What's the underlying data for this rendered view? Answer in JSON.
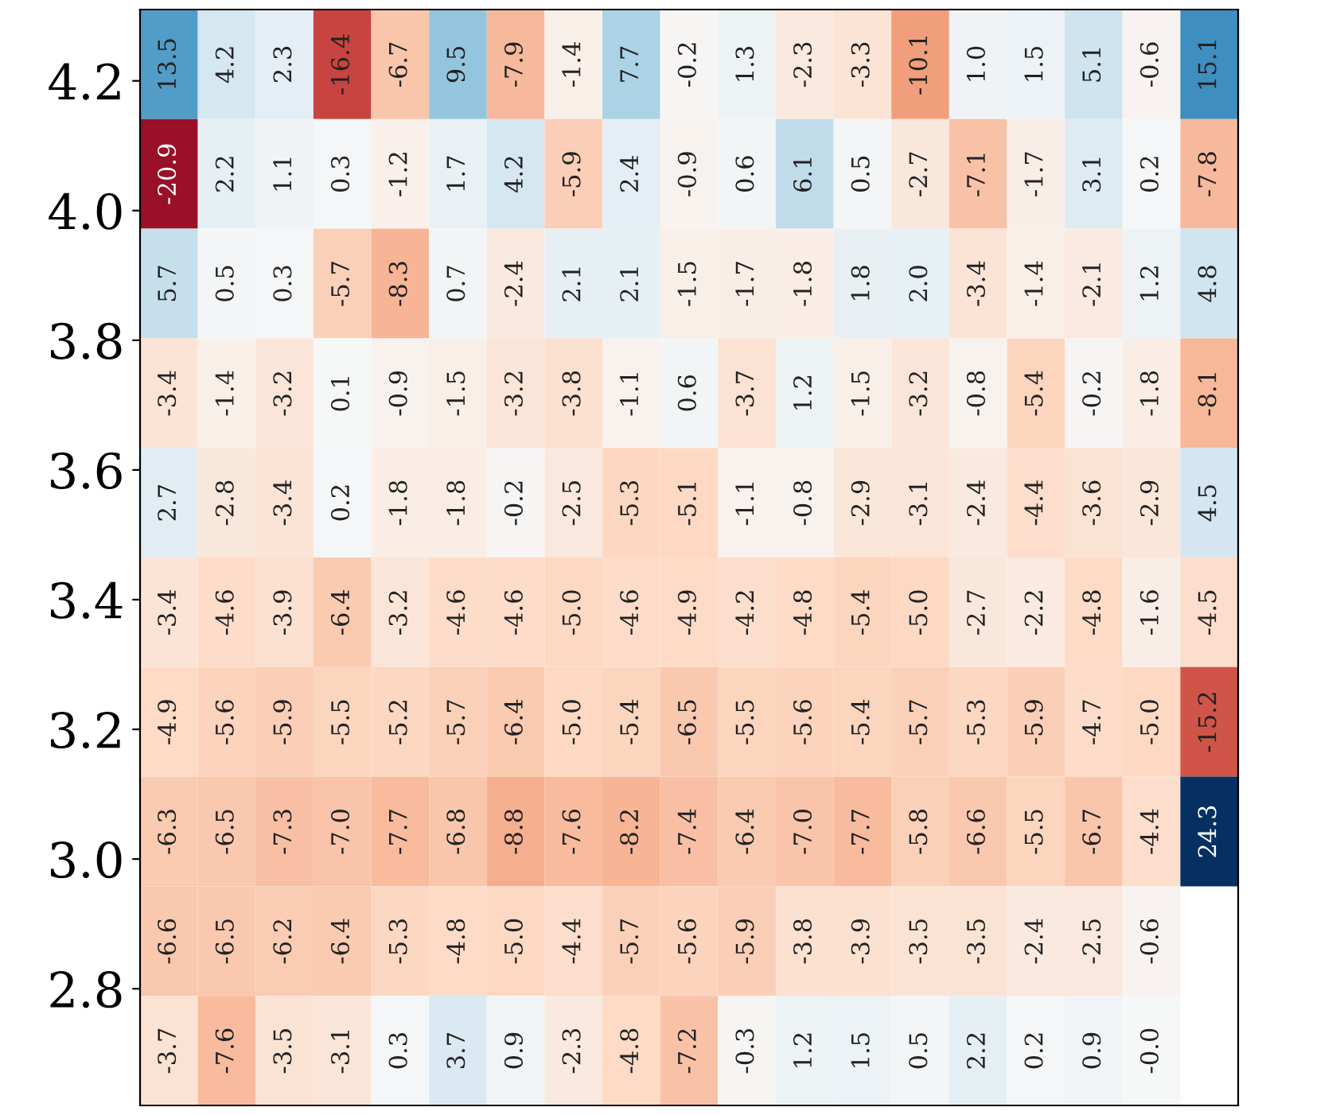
{
  "chart_data": {
    "type": "heatmap",
    "categories": [
      null,
      null,
      null,
      null,
      null,
      null,
      null,
      null,
      null,
      null,
      null,
      null,
      null,
      null,
      null,
      null,
      null,
      null,
      null
    ],
    "ylim": [
      2.62,
      4.31
    ],
    "yticks": [
      2.8,
      {
        "value": 3.0,
        "label": "3.0"
      },
      3.2,
      3.4,
      3.6,
      3.8,
      {
        "value": 4.0,
        "label": "4.0"
      },
      4.2
    ],
    "tick_labels": "y",
    "data_labels": true,
    "cells": [
      [
        13.5,
        4.2,
        2.3,
        -16.4,
        -6.7,
        9.5,
        -7.9,
        -1.4,
        7.7,
        -0.2,
        1.3,
        -2.3,
        -3.3,
        -10.1,
        1.0,
        1.5,
        5.1,
        -0.6,
        15.1
      ],
      [
        -20.9,
        2.2,
        1.1,
        0.3,
        -1.2,
        1.7,
        4.2,
        -5.9,
        2.4,
        -0.9,
        0.6,
        6.1,
        0.5,
        -2.7,
        -7.1,
        -1.7,
        3.1,
        0.2,
        -7.8
      ],
      [
        5.7,
        0.5,
        0.3,
        -5.7,
        -8.3,
        0.7,
        -2.4,
        2.1,
        2.1,
        -1.5,
        -1.7,
        -1.8,
        1.8,
        2.0,
        -3.4,
        -1.4,
        -2.1,
        1.2,
        4.8
      ],
      [
        -3.4,
        -1.4,
        -3.2,
        0.1,
        -0.9,
        -1.5,
        -3.2,
        -3.8,
        -1.1,
        0.6,
        -3.7,
        1.2,
        -1.5,
        -3.2,
        -0.8,
        -5.4,
        -0.2,
        -1.8,
        -8.1
      ],
      [
        2.7,
        -2.8,
        -3.4,
        0.2,
        -1.8,
        -1.8,
        -0.2,
        -2.5,
        -5.3,
        -5.1,
        -1.1,
        -0.8,
        -2.9,
        -3.1,
        -2.4,
        -4.4,
        -3.6,
        -2.9,
        4.5
      ],
      [
        -3.4,
        -4.6,
        -3.9,
        -6.4,
        -3.2,
        -4.6,
        -4.6,
        -5.0,
        -4.6,
        -4.9,
        -4.2,
        -4.8,
        -5.4,
        -5.0,
        -2.7,
        -2.2,
        -4.8,
        -1.6,
        -4.5
      ],
      [
        -4.9,
        -5.6,
        -5.9,
        -5.5,
        -5.2,
        -5.7,
        -6.4,
        -5.0,
        -5.4,
        -6.5,
        -5.5,
        -5.6,
        -5.4,
        -5.7,
        -5.3,
        -5.9,
        -4.7,
        -5.0,
        -15.2
      ],
      [
        -6.3,
        -6.5,
        -7.3,
        -7.0,
        -7.7,
        -6.8,
        -8.8,
        -7.6,
        -8.2,
        -7.4,
        -6.4,
        -7.0,
        -7.7,
        -5.8,
        -6.6,
        -5.5,
        -6.7,
        -4.4,
        24.3
      ],
      [
        -6.6,
        -6.5,
        -6.2,
        -6.4,
        -5.3,
        -4.8,
        -5.0,
        -4.4,
        -5.7,
        -5.6,
        -5.9,
        -3.8,
        -3.9,
        -3.5,
        -3.5,
        -2.4,
        -2.5,
        -0.6,
        null
      ],
      [
        -3.7,
        -7.6,
        -3.5,
        -3.1,
        0.3,
        3.7,
        0.9,
        -2.3,
        -4.8,
        -7.2,
        -0.3,
        1.2,
        1.5,
        0.5,
        2.2,
        0.2,
        0.9,
        -0.0,
        null
      ]
    ],
    "cell_labels": [
      [
        "13.5",
        "4.2",
        "2.3",
        "-16.4",
        "-6.7",
        "9.5",
        "-7.9",
        "-1.4",
        "7.7",
        "-0.2",
        "1.3",
        "-2.3",
        "-3.3",
        "-10.1",
        "1.0",
        "1.5",
        "5.1",
        "-0.6",
        "15.1"
      ],
      [
        "-20.9",
        "2.2",
        "1.1",
        "0.3",
        "-1.2",
        "1.7",
        "4.2",
        "-5.9",
        "2.4",
        "-0.9",
        "0.6",
        "6.1",
        "0.5",
        "-2.7",
        "-7.1",
        "-1.7",
        "3.1",
        "0.2",
        "-7.8"
      ],
      [
        "5.7",
        "0.5",
        "0.3",
        "-5.7",
        "-8.3",
        "0.7",
        "-2.4",
        "2.1",
        "2.1",
        "-1.5",
        "-1.7",
        "-1.8",
        "1.8",
        "2.0",
        "-3.4",
        "-1.4",
        "-2.1",
        "1.2",
        "4.8"
      ],
      [
        "-3.4",
        "-1.4",
        "-3.2",
        "0.1",
        "-0.9",
        "-1.5",
        "-3.2",
        "-3.8",
        "-1.1",
        "0.6",
        "-3.7",
        "1.2",
        "-1.5",
        "-3.2",
        "-0.8",
        "-5.4",
        "-0.2",
        "-1.8",
        "-8.1"
      ],
      [
        "2.7",
        "-2.8",
        "-3.4",
        "0.2",
        "-1.8",
        "-1.8",
        "-0.2",
        "-2.5",
        "-5.3",
        "-5.1",
        "-1.1",
        "-0.8",
        "-2.9",
        "-3.1",
        "-2.4",
        "-4.4",
        "-3.6",
        "-2.9",
        "4.5"
      ],
      [
        "-3.4",
        "-4.6",
        "-3.9",
        "-6.4",
        "-3.2",
        "-4.6",
        "-4.6",
        "-5.0",
        "-4.6",
        "-4.9",
        "-4.2",
        "-4.8",
        "-5.4",
        "-5.0",
        "-2.7",
        "-2.2",
        "-4.8",
        "-1.6",
        "-4.5"
      ],
      [
        "-4.9",
        "-5.6",
        "-5.9",
        "-5.5",
        "-5.2",
        "-5.7",
        "-6.4",
        "-5.0",
        "-5.4",
        "-6.5",
        "-5.5",
        "-5.6",
        "-5.4",
        "-5.7",
        "-5.3",
        "-5.9",
        "-4.7",
        "-5.0",
        "-15.2"
      ],
      [
        "-6.3",
        "-6.5",
        "-7.3",
        "-7.0",
        "-7.7",
        "-6.8",
        "-8.8",
        "-7.6",
        "-8.2",
        "-7.4",
        "-6.4",
        "-7.0",
        "-7.7",
        "-5.8",
        "-6.6",
        "-5.5",
        "-6.7",
        "-4.4",
        "24.3"
      ],
      [
        "-6.6",
        "-6.5",
        "-6.2",
        "-6.4",
        "-5.3",
        "-4.8",
        "-5.0",
        "-4.4",
        "-5.7",
        "-5.6",
        "-5.9",
        "-3.8",
        "-3.9",
        "-3.5",
        "-3.5",
        "-2.4",
        "-2.5",
        "-0.6",
        null
      ],
      [
        "-3.7",
        "-7.6",
        "-3.5",
        "-3.1",
        "0.3",
        "3.7",
        "0.9",
        "-2.3",
        "-4.8",
        "-7.2",
        "-0.3",
        "1.2",
        "1.5",
        "0.5",
        "2.2",
        "0.2",
        "0.9",
        "-0.0",
        null
      ]
    ]
  }
}
